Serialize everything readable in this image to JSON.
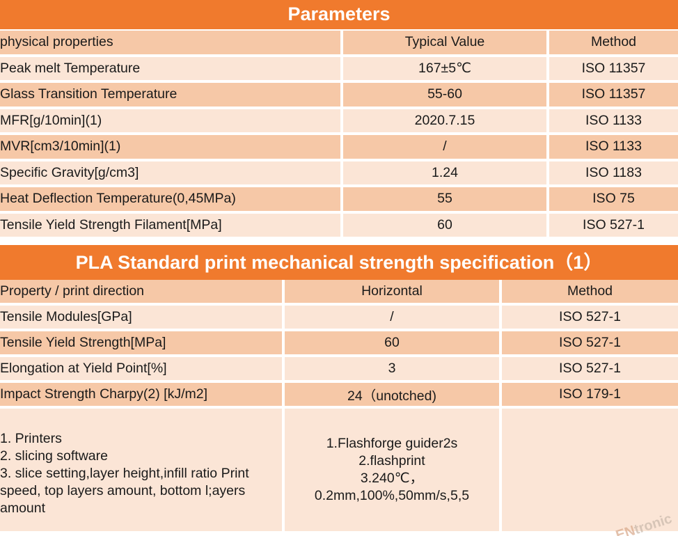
{
  "section1": {
    "title": "Parameters",
    "headers": [
      "physical properties",
      "Typical Value",
      "Method"
    ],
    "rows": [
      [
        "Peak melt Temperature",
        "167±5℃",
        "ISO 11357"
      ],
      [
        "Glass Transition Temperature",
        "55-60",
        "ISO 11357"
      ],
      [
        "MFR[g/10min](1)",
        "2020.7.15",
        "ISO 1133"
      ],
      [
        "MVR[cm3/10min](1)",
        "/",
        "ISO 1133"
      ],
      [
        "Specific Gravity[g/cm3]",
        "1.24",
        "ISO 1183"
      ],
      [
        "Heat Deflection Temperature(0,45MPa)",
        "55",
        "ISO 75"
      ],
      [
        "Tensile Yield Strength Filament[MPa]",
        "60",
        "ISO 527-1"
      ]
    ]
  },
  "section2": {
    "title": "PLA Standard print mechanical strength specification（1）",
    "headers": [
      "Property / print direction",
      "Horizontal",
      "Method"
    ],
    "rows": [
      [
        "Tensile Modules[GPa]",
        "/",
        "ISO 527-1"
      ],
      [
        "Tensile Yield Strength[MPa]",
        "60",
        "ISO 527-1"
      ],
      [
        "Elongation at Yield Point[%]",
        "3",
        "ISO 527-1"
      ],
      [
        "Impact Strength Charpy(2) [kJ/m2]",
        "24（unotched)",
        "ISO 179-1"
      ]
    ],
    "notes_left": [
      "1. Printers",
      "2. slicing software",
      "3. slice setting,layer height,infill ratio Print speed, top layers amount, bottom l;ayers amount"
    ],
    "notes_mid": [
      "1.Flashforge guider2s",
      "2.flashprint",
      "3.240℃，",
      "0.2mm,100%,50mm/s,5,5"
    ]
  },
  "watermark": {
    "prefix": "EN",
    "suffix": "tronic"
  }
}
